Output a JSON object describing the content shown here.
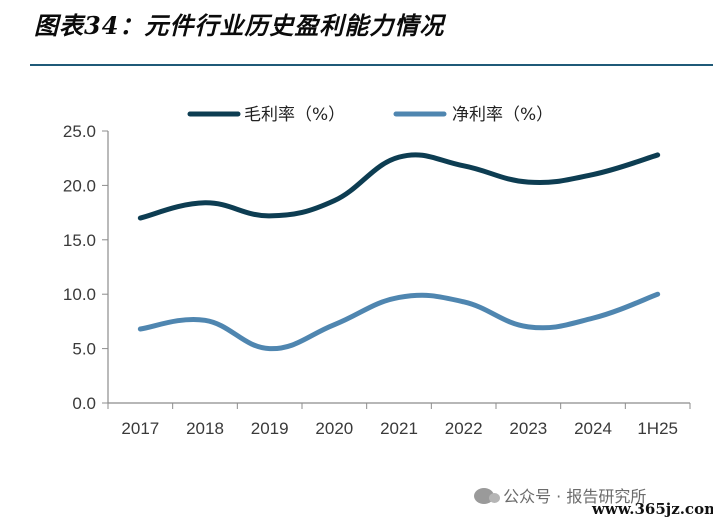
{
  "title": "图表34：元件行业历史盈利能力情况",
  "watermark": "公众号 · 报告研究所",
  "site": "www.365jz.com",
  "colors": {
    "gross": "#0d3d52",
    "net": "#4f86b0",
    "rule": "#1f5a78"
  },
  "chart_data": {
    "type": "line",
    "categories": [
      "2017",
      "2018",
      "2019",
      "2020",
      "2021",
      "2022",
      "2023",
      "2024",
      "1H25"
    ],
    "series": [
      {
        "name": "毛利率（%）",
        "values": [
          17.0,
          18.4,
          17.2,
          18.6,
          22.6,
          21.8,
          20.3,
          21.0,
          22.8
        ]
      },
      {
        "name": "净利率（%）",
        "values": [
          6.8,
          7.6,
          5.0,
          7.2,
          9.7,
          9.3,
          7.0,
          7.8,
          10.0
        ]
      }
    ],
    "ylim": [
      0,
      25
    ],
    "yticks": [
      "0.0",
      "5.0",
      "10.0",
      "15.0",
      "20.0",
      "25.0"
    ],
    "legend": "top",
    "grid": false
  }
}
